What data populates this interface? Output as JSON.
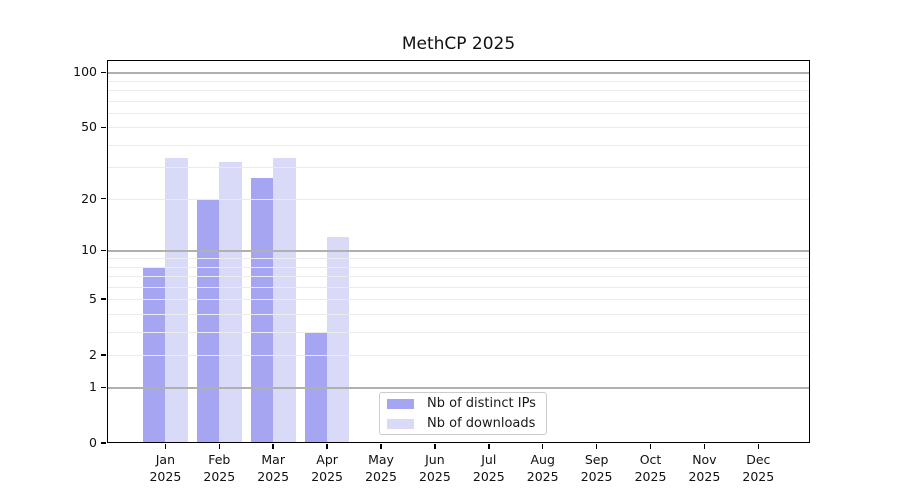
{
  "title": "MethCP 2025",
  "legend": {
    "items": [
      {
        "label": "Nb of distinct IPs",
        "color_key": "ips"
      },
      {
        "label": "Nb of downloads",
        "color_key": "downloads"
      }
    ]
  },
  "colors": {
    "ips": "#a5a5f2",
    "downloads": "#d9d9f8",
    "grid_major": "#b0b0b0",
    "grid_minor": "#ebebeb",
    "axis": "#000000",
    "legend_border": "#cccccc",
    "text": "#111111"
  },
  "chart_data": {
    "type": "bar",
    "title": "MethCP 2025",
    "months": [
      "Jan",
      "Feb",
      "Mar",
      "Apr",
      "May",
      "Jun",
      "Jul",
      "Aug",
      "Sep",
      "Oct",
      "Nov",
      "Dec"
    ],
    "year": "2025",
    "categories": [
      "Jan 2025",
      "Feb 2025",
      "Mar 2025",
      "Apr 2025",
      "May 2025",
      "Jun 2025",
      "Jul 2025",
      "Aug 2025",
      "Sep 2025",
      "Oct 2025",
      "Nov 2025",
      "Dec 2025"
    ],
    "series": [
      {
        "name": "Nb of distinct IPs",
        "color_key": "ips",
        "values": [
          8,
          20,
          26,
          3,
          0,
          0,
          0,
          0,
          0,
          0,
          0,
          0
        ]
      },
      {
        "name": "Nb of downloads",
        "color_key": "downloads",
        "values": [
          34,
          32,
          34,
          12,
          0,
          0,
          0,
          0,
          0,
          0,
          0,
          0
        ]
      }
    ],
    "xlabel": "",
    "ylabel": "",
    "yscale": "log1p",
    "ylim": [
      0,
      117
    ],
    "y_ticks": [
      0,
      1,
      2,
      5,
      10,
      20,
      50,
      100
    ],
    "y_major_gridlines": [
      1,
      10,
      100
    ],
    "y_minor_gridlines": [
      2,
      3,
      4,
      5,
      6,
      7,
      8,
      9,
      20,
      30,
      40,
      50,
      60,
      70,
      80,
      90
    ],
    "grid": true,
    "legend_position": "lower center"
  }
}
